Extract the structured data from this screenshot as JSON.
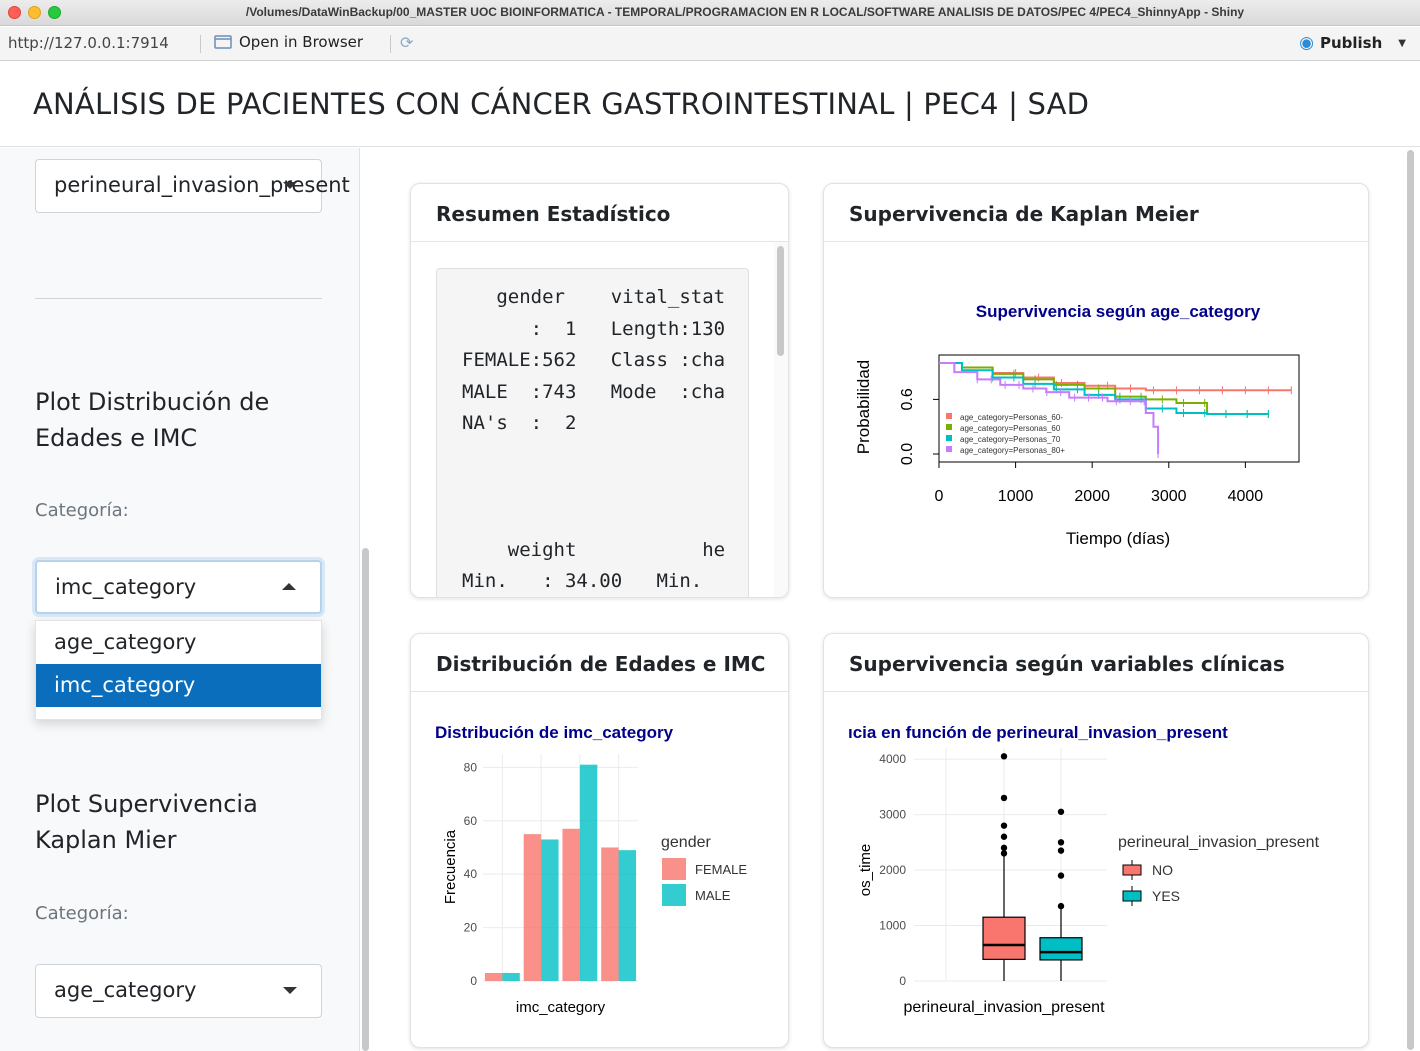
{
  "window": {
    "title": "/Volumes/DataWinBackup/00_MASTER UOC BIOINFORMATICA - TEMPORAL/PROGRAMACION EN R LOCAL/SOFTWARE ANALISIS DE DATOS/PEC 4/PEC4_ShinnyApp - Shiny"
  },
  "toolbar": {
    "url": "http://127.0.0.1:7914",
    "open_browser_label": "Open in Browser",
    "publish_label": "Publish"
  },
  "app": {
    "title": "ANÁLISIS DE PACIENTES CON CÁNCER GASTROINTESTINAL | PEC4 | SAD"
  },
  "sidebar": {
    "top_select_value": "perineural_invasion_present",
    "section_dist_title": "Plot Distribución de Edades e IMC",
    "dist_label": "Categoría:",
    "dist_select_value": "imc_category",
    "dist_options": [
      "age_category",
      "imc_category"
    ],
    "dist_selected_index": 1,
    "section_km_title": "Plot Supervivencia Kaplan Mier",
    "km_label": "Categoría:",
    "km_select_value": "age_category"
  },
  "cards": {
    "summary": {
      "title": "Resumen Estadístico",
      "lines": [
        "   gender    vital_stat",
        "      :  1   Length:130",
        "FEMALE:562   Class :cha",
        "MALE  :743   Mode  :cha",
        "NA's  :  2             ",
        "",
        "",
        "",
        "    weight           he",
        "Min.   : 34.00   Min.  "
      ]
    },
    "km": {
      "title": "Supervivencia de Kaplan Meier"
    },
    "dist": {
      "title": "Distribución de Edades e IMC"
    },
    "clinical": {
      "title": "Supervivencia según variables clínicas"
    }
  },
  "chart_data": [
    {
      "type": "line",
      "title": "Supervivencia según age_category",
      "xlabel": "Tiempo (días)",
      "ylabel": "Probabilidad",
      "xticks": [
        "0",
        "1000",
        "2000",
        "3000",
        "4000"
      ],
      "yticks": [
        "0.0",
        "0.6"
      ],
      "xlim": [
        0,
        4700
      ],
      "ylim": [
        0,
        1
      ],
      "legend_position": "bottom-left",
      "series": [
        {
          "name": "age_category=Personas_60-",
          "color": "#f8766d",
          "x": [
            0,
            300,
            700,
            1100,
            1500,
            1900,
            2300,
            2700,
            3100,
            3500,
            4600
          ],
          "y": [
            1.0,
            0.95,
            0.89,
            0.84,
            0.78,
            0.75,
            0.72,
            0.7,
            0.7,
            0.7,
            0.7
          ]
        },
        {
          "name": "age_category=Personas_60",
          "color": "#7cae00",
          "x": [
            0,
            300,
            700,
            1100,
            1500,
            1900,
            2300,
            2700,
            3100,
            3500,
            4300
          ],
          "y": [
            1.0,
            0.95,
            0.88,
            0.82,
            0.76,
            0.72,
            0.63,
            0.6,
            0.56,
            0.44,
            0.44
          ]
        },
        {
          "name": "age_category=Personas_70",
          "color": "#00bfc4",
          "x": [
            0,
            300,
            700,
            1100,
            1500,
            1900,
            2300,
            2700,
            3100,
            3500,
            4300
          ],
          "y": [
            1.0,
            0.92,
            0.84,
            0.77,
            0.71,
            0.65,
            0.6,
            0.5,
            0.45,
            0.44,
            0.44
          ]
        },
        {
          "name": "age_category=Personas_80+",
          "color": "#c77cff",
          "x": [
            0,
            200,
            500,
            800,
            1100,
            1400,
            1700,
            2200,
            2700,
            2800,
            2860
          ],
          "y": [
            1.0,
            0.9,
            0.82,
            0.76,
            0.72,
            0.68,
            0.62,
            0.58,
            0.45,
            0.3,
            0.0
          ]
        }
      ]
    },
    {
      "type": "bar",
      "title": "Distribución de imc_category",
      "xlabel": "imc_category",
      "ylabel": "Frecuencia",
      "ylim": [
        0,
        85
      ],
      "yticks": [
        0,
        20,
        40,
        60,
        80
      ],
      "legend_title": "gender",
      "legend_position": "right",
      "categories": [
        "",
        "",
        "",
        ""
      ],
      "series": [
        {
          "name": "FEMALE",
          "color": "#f8766d",
          "values": [
            3,
            55,
            57,
            50
          ]
        },
        {
          "name": "MALE",
          "color": "#00bfc4",
          "values": [
            3,
            53,
            81,
            49
          ]
        }
      ]
    },
    {
      "type": "boxplot",
      "title": "ıcia en función de perineural_invasion_present",
      "xlabel": "perineural_invasion_present",
      "ylabel": "os_time",
      "ylim": [
        0,
        4200
      ],
      "yticks": [
        0,
        1000,
        2000,
        3000,
        4000
      ],
      "legend_title": "perineural_invasion_present",
      "legend_position": "right",
      "groups": [
        {
          "name": "NO",
          "color": "#f8766d",
          "min": 0,
          "q1": 390,
          "median": 650,
          "q3": 1150,
          "max": 2250,
          "outliers": [
            2300,
            2400,
            2600,
            2800,
            3300,
            4050
          ]
        },
        {
          "name": "YES",
          "color": "#00bfc4",
          "min": 0,
          "q1": 380,
          "median": 520,
          "q3": 780,
          "max": 1300,
          "outliers": [
            1350,
            1900,
            2350,
            2500,
            3050
          ]
        }
      ]
    }
  ]
}
